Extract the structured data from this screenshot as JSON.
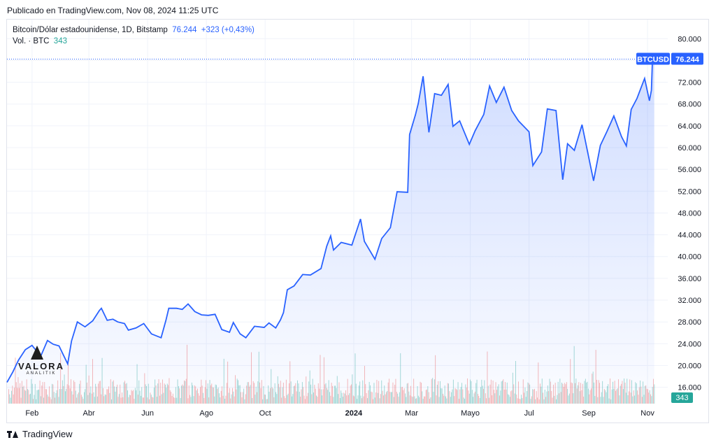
{
  "header": {
    "published": "Publicado en TradingView.com, Nov 08, 2024 11:25 UTC"
  },
  "legend": {
    "title": "Bitcoin/Dólar estadounidense, 1D, Bitstamp",
    "price": "76.244",
    "change": "+323 (+0,43%)",
    "vol_label": "Vol. · BTC",
    "vol_value": "343"
  },
  "footer": {
    "brand": "TradingView"
  },
  "logo": {
    "name": "VALORA",
    "sub": "ANALITIK"
  },
  "colors": {
    "line": "#2962ff",
    "vol_up": "#26a69a",
    "vol_down": "#ef5350"
  },
  "chart_data": {
    "type": "area",
    "title": "Bitcoin/Dólar estadounidense, 1D, Bitstamp",
    "ticker": "BTCUSD",
    "last_price_label": "76.244",
    "volume_badge": "343",
    "y_range": [
      13000,
      83500
    ],
    "y_ticks": [
      16000,
      20000,
      24000,
      28000,
      32000,
      36000,
      40000,
      44000,
      48000,
      52000,
      56000,
      60000,
      64000,
      68000,
      72000,
      76000,
      80000
    ],
    "y_tick_labels": [
      "16.000",
      "20.000",
      "24.000",
      "28.000",
      "32.000",
      "36.000",
      "40.000",
      "44.000",
      "48.000",
      "52.000",
      "56.000",
      "60.000",
      "64.000",
      "68.000",
      "72.000",
      "76.000",
      "80.000"
    ],
    "x_range": [
      "2023-01-06",
      "2024-11-22"
    ],
    "x_ticks": [
      {
        "date": "2023-02-01",
        "label": "Feb"
      },
      {
        "date": "2023-04-01",
        "label": "Abr"
      },
      {
        "date": "2023-06-01",
        "label": "Jun"
      },
      {
        "date": "2023-08-01",
        "label": "Ago"
      },
      {
        "date": "2023-10-01",
        "label": "Oct"
      },
      {
        "date": "2024-01-01",
        "label": "2024",
        "bold": true
      },
      {
        "date": "2024-03-01",
        "label": "Mar"
      },
      {
        "date": "2024-05-01",
        "label": "Mayo"
      },
      {
        "date": "2024-07-01",
        "label": "Jul"
      },
      {
        "date": "2024-09-01",
        "label": "Sep"
      },
      {
        "date": "2024-11-01",
        "label": "Nov"
      }
    ],
    "series": [
      {
        "name": "BTCUSD",
        "points": [
          [
            "2023-01-06",
            16900
          ],
          [
            "2023-01-12",
            18800
          ],
          [
            "2023-01-18",
            21000
          ],
          [
            "2023-01-25",
            22900
          ],
          [
            "2023-02-01",
            23700
          ],
          [
            "2023-02-10",
            21700
          ],
          [
            "2023-02-17",
            24600
          ],
          [
            "2023-02-23",
            23900
          ],
          [
            "2023-03-01",
            23600
          ],
          [
            "2023-03-10",
            20300
          ],
          [
            "2023-03-14",
            24500
          ],
          [
            "2023-03-20",
            28000
          ],
          [
            "2023-03-28",
            27100
          ],
          [
            "2023-04-05",
            28200
          ],
          [
            "2023-04-12",
            30100
          ],
          [
            "2023-04-14",
            30500
          ],
          [
            "2023-04-20",
            28300
          ],
          [
            "2023-04-26",
            28500
          ],
          [
            "2023-05-01",
            28000
          ],
          [
            "2023-05-08",
            27700
          ],
          [
            "2023-05-12",
            26500
          ],
          [
            "2023-05-20",
            26900
          ],
          [
            "2023-05-28",
            27700
          ],
          [
            "2023-06-05",
            25800
          ],
          [
            "2023-06-15",
            25100
          ],
          [
            "2023-06-20",
            28300
          ],
          [
            "2023-06-23",
            30500
          ],
          [
            "2023-07-01",
            30500
          ],
          [
            "2023-07-07",
            30300
          ],
          [
            "2023-07-13",
            31300
          ],
          [
            "2023-07-20",
            29900
          ],
          [
            "2023-07-27",
            29300
          ],
          [
            "2023-08-03",
            29200
          ],
          [
            "2023-08-10",
            29400
          ],
          [
            "2023-08-17",
            26600
          ],
          [
            "2023-08-25",
            26100
          ],
          [
            "2023-08-29",
            27900
          ],
          [
            "2023-09-05",
            25800
          ],
          [
            "2023-09-11",
            25100
          ],
          [
            "2023-09-20",
            27200
          ],
          [
            "2023-09-30",
            27000
          ],
          [
            "2023-10-05",
            27800
          ],
          [
            "2023-10-12",
            26900
          ],
          [
            "2023-10-17",
            28400
          ],
          [
            "2023-10-20",
            29700
          ],
          [
            "2023-10-24",
            33900
          ],
          [
            "2023-10-31",
            34600
          ],
          [
            "2023-11-09",
            36700
          ],
          [
            "2023-11-17",
            36600
          ],
          [
            "2023-11-28",
            37800
          ],
          [
            "2023-12-04",
            41900
          ],
          [
            "2023-12-08",
            43800
          ],
          [
            "2023-12-11",
            41200
          ],
          [
            "2023-12-19",
            42600
          ],
          [
            "2023-12-30",
            42100
          ],
          [
            "2024-01-08",
            46900
          ],
          [
            "2024-01-12",
            42800
          ],
          [
            "2024-01-23",
            39500
          ],
          [
            "2024-01-30",
            43300
          ],
          [
            "2024-02-08",
            45300
          ],
          [
            "2024-02-15",
            51900
          ],
          [
            "2024-02-26",
            51800
          ],
          [
            "2024-02-28",
            62400
          ],
          [
            "2024-03-05",
            66000
          ],
          [
            "2024-03-08",
            68100
          ],
          [
            "2024-03-13",
            73100
          ],
          [
            "2024-03-19",
            62800
          ],
          [
            "2024-03-25",
            69900
          ],
          [
            "2024-04-01",
            69600
          ],
          [
            "2024-04-08",
            71600
          ],
          [
            "2024-04-13",
            63900
          ],
          [
            "2024-04-20",
            64900
          ],
          [
            "2024-04-30",
            60600
          ],
          [
            "2024-05-06",
            63100
          ],
          [
            "2024-05-15",
            66100
          ],
          [
            "2024-05-21",
            71300
          ],
          [
            "2024-05-28",
            68300
          ],
          [
            "2024-06-05",
            71100
          ],
          [
            "2024-06-13",
            66800
          ],
          [
            "2024-06-20",
            64900
          ],
          [
            "2024-07-01",
            62900
          ],
          [
            "2024-07-05",
            56700
          ],
          [
            "2024-07-14",
            59200
          ],
          [
            "2024-07-20",
            67100
          ],
          [
            "2024-07-29",
            66800
          ],
          [
            "2024-08-05",
            54100
          ],
          [
            "2024-08-10",
            60700
          ],
          [
            "2024-08-17",
            59500
          ],
          [
            "2024-08-25",
            64200
          ],
          [
            "2024-09-06",
            53900
          ],
          [
            "2024-09-13",
            60400
          ],
          [
            "2024-09-20",
            63000
          ],
          [
            "2024-09-27",
            65800
          ],
          [
            "2024-10-05",
            62000
          ],
          [
            "2024-10-10",
            60300
          ],
          [
            "2024-10-15",
            67000
          ],
          [
            "2024-10-21",
            69000
          ],
          [
            "2024-10-29",
            72700
          ],
          [
            "2024-11-03",
            68600
          ],
          [
            "2024-11-05",
            70500
          ],
          [
            "2024-11-06",
            75700
          ],
          [
            "2024-11-08",
            76244
          ]
        ]
      }
    ]
  }
}
